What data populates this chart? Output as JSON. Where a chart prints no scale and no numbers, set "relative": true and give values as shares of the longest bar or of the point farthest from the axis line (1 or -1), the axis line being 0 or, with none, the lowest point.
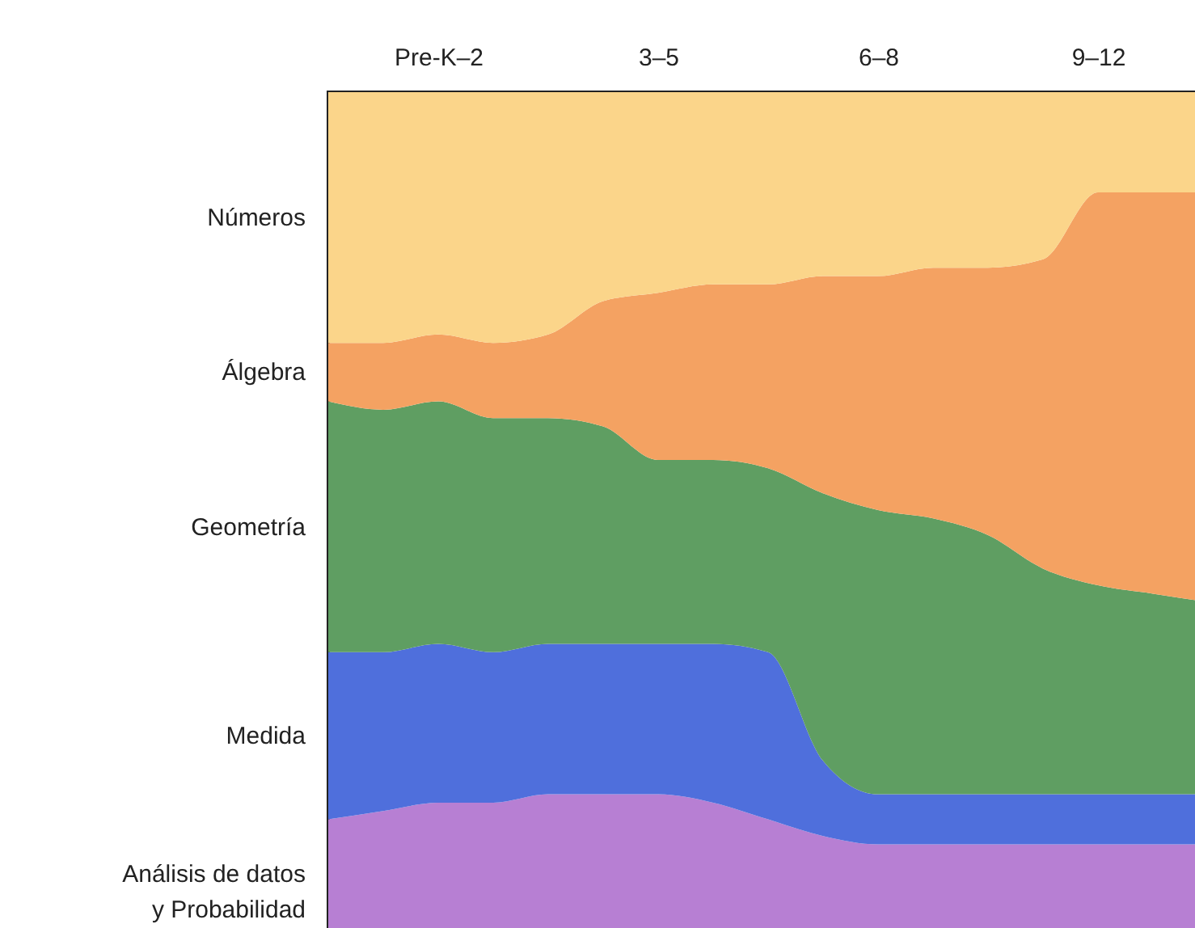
{
  "chart_data": {
    "type": "area",
    "stacked": true,
    "relative": true,
    "legend": false,
    "grid": false,
    "categories": [
      null,
      null,
      "Pre-K–2",
      null,
      null,
      null,
      "3–5",
      null,
      null,
      null,
      "6–8",
      null,
      null,
      null,
      "9–12",
      null,
      null
    ],
    "series": [
      {
        "name": "Análisis de datos y Probabilidad",
        "color": "#b77fd3",
        "values": [
          0.13,
          0.14,
          0.15,
          0.15,
          0.16,
          0.16,
          0.16,
          0.15,
          0.13,
          0.11,
          0.1,
          0.1,
          0.1,
          0.1,
          0.1,
          0.1,
          0.1
        ]
      },
      {
        "name": "Medida",
        "color": "#4f6fdc",
        "values": [
          0.2,
          0.19,
          0.19,
          0.18,
          0.18,
          0.18,
          0.18,
          0.19,
          0.2,
          0.09,
          0.06,
          0.06,
          0.06,
          0.06,
          0.06,
          0.06,
          0.06
        ]
      },
      {
        "name": "Geometría",
        "color": "#5f9e62",
        "values": [
          0.3,
          0.29,
          0.29,
          0.28,
          0.27,
          0.26,
          0.22,
          0.22,
          0.22,
          0.32,
          0.34,
          0.33,
          0.31,
          0.27,
          0.25,
          0.24,
          0.23
        ]
      },
      {
        "name": "Álgebra",
        "color": "#f4a262",
        "values": [
          0.07,
          0.08,
          0.08,
          0.09,
          0.1,
          0.15,
          0.2,
          0.21,
          0.22,
          0.26,
          0.28,
          0.3,
          0.32,
          0.37,
          0.47,
          0.48,
          0.49
        ]
      },
      {
        "name": "Números",
        "color": "#fbd58a",
        "values": [
          0.3,
          0.3,
          0.29,
          0.3,
          0.29,
          0.25,
          0.24,
          0.23,
          0.23,
          0.22,
          0.22,
          0.21,
          0.21,
          0.2,
          0.12,
          0.12,
          0.12
        ]
      }
    ]
  }
}
